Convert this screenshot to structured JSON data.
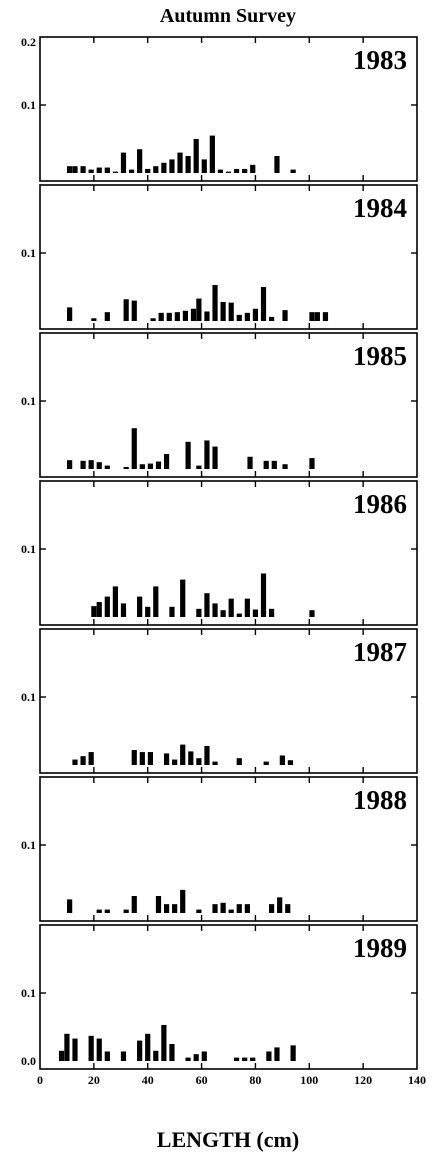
{
  "chart_data": {
    "type": "bar",
    "title": "Autumn Survey",
    "xlabel": "LENGTH (cm)",
    "xlim": [
      0,
      140
    ],
    "x_ticks": [
      "0",
      "20",
      "40",
      "60",
      "80",
      "100",
      "120",
      "140"
    ],
    "x_tick_values": [
      0,
      20,
      40,
      60,
      80,
      100,
      120,
      140
    ],
    "ylim": [
      0,
      0.2
    ],
    "y_ticks_top_panel": [
      "0.2",
      "0.1"
    ],
    "y_ticks_middle_panels": [
      "0.1"
    ],
    "y_ticks_bottom_panel": [
      "0.1",
      "0.0"
    ],
    "panels": [
      {
        "label": "1983",
        "x": [
          11,
          13,
          16,
          19,
          22,
          25,
          28,
          31,
          34,
          37,
          40,
          43,
          46,
          49,
          52,
          55,
          58,
          61,
          64,
          67,
          70,
          73,
          76,
          79,
          82,
          85,
          88,
          91,
          94
        ],
        "y": [
          0.01,
          0.01,
          0.01,
          0.005,
          0.008,
          0.008,
          0.002,
          0.03,
          0.005,
          0.035,
          0.006,
          0.01,
          0.015,
          0.02,
          0.03,
          0.025,
          0.05,
          0.02,
          0.055,
          0.005,
          0.002,
          0.006,
          0.006,
          0.012,
          0.0,
          0.0,
          0.025,
          0.0,
          0.005
        ]
      },
      {
        "label": "1984",
        "x": [
          11,
          20,
          25,
          32,
          35,
          42,
          45,
          48,
          51,
          54,
          57,
          59,
          62,
          65,
          68,
          71,
          74,
          77,
          80,
          83,
          86,
          91,
          96,
          101,
          103,
          106
        ],
        "y": [
          0.02,
          0.004,
          0.013,
          0.032,
          0.03,
          0.004,
          0.012,
          0.012,
          0.013,
          0.015,
          0.018,
          0.033,
          0.014,
          0.053,
          0.028,
          0.027,
          0.009,
          0.012,
          0.018,
          0.05,
          0.006,
          0.016,
          0.0,
          0.013,
          0.013,
          0.013
        ]
      },
      {
        "label": "1985",
        "x": [
          11,
          16,
          19,
          22,
          25,
          28,
          32,
          35,
          38,
          41,
          44,
          47,
          49,
          52,
          55,
          59,
          62,
          65,
          68,
          71,
          74,
          78,
          81,
          84,
          87,
          91,
          94,
          97,
          101
        ],
        "y": [
          0.013,
          0.012,
          0.013,
          0.01,
          0.005,
          0.0,
          0.003,
          0.06,
          0.007,
          0.008,
          0.011,
          0.022,
          0.0,
          0.0,
          0.04,
          0.005,
          0.042,
          0.033,
          0.0,
          0.0,
          0.0,
          0.018,
          0.0,
          0.012,
          0.012,
          0.007,
          0.0,
          0.0,
          0.016
        ]
      },
      {
        "label": "1986",
        "x": [
          20,
          22,
          25,
          28,
          31,
          34,
          37,
          40,
          43,
          46,
          49,
          53,
          56,
          59,
          62,
          65,
          68,
          71,
          74,
          77,
          80,
          83,
          86,
          101
        ],
        "y": [
          0.016,
          0.022,
          0.03,
          0.045,
          0.02,
          0.0,
          0.03,
          0.015,
          0.045,
          0.0,
          0.015,
          0.055,
          0.0,
          0.012,
          0.035,
          0.02,
          0.01,
          0.027,
          0.005,
          0.027,
          0.011,
          0.064,
          0.012,
          0.01
        ]
      },
      {
        "label": "1987",
        "x": [
          13,
          16,
          19,
          25,
          28,
          31,
          35,
          38,
          41,
          44,
          47,
          50,
          53,
          56,
          59,
          62,
          65,
          68,
          71,
          74,
          77,
          80,
          84,
          87,
          90,
          93,
          96
        ],
        "y": [
          0.008,
          0.013,
          0.019,
          0.0,
          0.0,
          0.0,
          0.022,
          0.019,
          0.019,
          0.0,
          0.017,
          0.008,
          0.03,
          0.02,
          0.01,
          0.028,
          0.005,
          0.0,
          0.0,
          0.01,
          0.0,
          0.0,
          0.005,
          0.0,
          0.014,
          0.007,
          0.0
        ]
      },
      {
        "label": "1988",
        "x": [
          11,
          16,
          22,
          25,
          28,
          32,
          35,
          38,
          41,
          44,
          47,
          50,
          53,
          56,
          59,
          62,
          65,
          68,
          71,
          74,
          77,
          80,
          83,
          86,
          89,
          92,
          96
        ],
        "y": [
          0.02,
          0.0,
          0.005,
          0.005,
          0.0,
          0.005,
          0.025,
          0.0,
          0.0,
          0.025,
          0.013,
          0.013,
          0.034,
          0.0,
          0.005,
          0.0,
          0.013,
          0.015,
          0.005,
          0.013,
          0.013,
          0.0,
          0.0,
          0.013,
          0.023,
          0.013,
          0.0
        ]
      },
      {
        "label": "1989",
        "x": [
          8,
          10,
          13,
          19,
          22,
          25,
          28,
          31,
          34,
          37,
          40,
          43,
          46,
          49,
          52,
          55,
          58,
          61,
          64,
          67,
          70,
          73,
          76,
          79,
          82,
          85,
          88,
          91,
          94
        ],
        "y": [
          0.015,
          0.04,
          0.033,
          0.037,
          0.033,
          0.014,
          0.0,
          0.014,
          0.0,
          0.03,
          0.04,
          0.015,
          0.053,
          0.025,
          0.0,
          0.005,
          0.01,
          0.014,
          0.0,
          0.0,
          0.0,
          0.005,
          0.005,
          0.005,
          0.0,
          0.014,
          0.02,
          0.0,
          0.023
        ]
      }
    ]
  }
}
